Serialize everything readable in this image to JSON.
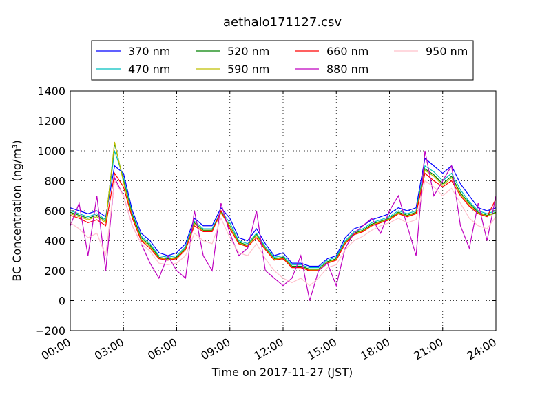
{
  "chart_data": {
    "type": "line",
    "title": "aethalo171127.csv",
    "xlabel": "Time on 2017-11-27 (JST)",
    "ylabel": "BC Concentration (ng/m³)",
    "x": [
      0,
      0.5,
      1,
      1.5,
      2,
      2.5,
      3,
      3.5,
      4,
      4.5,
      5,
      5.5,
      6,
      6.5,
      7,
      7.5,
      8,
      8.5,
      9,
      9.5,
      10,
      10.5,
      11,
      11.5,
      12,
      12.5,
      13,
      13.5,
      14,
      14.5,
      15,
      15.5,
      16,
      16.5,
      17,
      17.5,
      18,
      18.5,
      19,
      19.5,
      20,
      20.5,
      21,
      21.5,
      22,
      22.5,
      23,
      23.5,
      24
    ],
    "xlim": [
      0,
      24
    ],
    "xticks": [
      {
        "value": 0,
        "label": "00:00"
      },
      {
        "value": 3,
        "label": "03:00"
      },
      {
        "value": 6,
        "label": "06:00"
      },
      {
        "value": 9,
        "label": "09:00"
      },
      {
        "value": 12,
        "label": "12:00"
      },
      {
        "value": 15,
        "label": "15:00"
      },
      {
        "value": 18,
        "label": "18:00"
      },
      {
        "value": 21,
        "label": "21:00"
      },
      {
        "value": 24,
        "label": "24:00"
      }
    ],
    "ylim": [
      -200,
      1400
    ],
    "yticks": [
      {
        "value": -200,
        "label": "−200"
      },
      0,
      200,
      400,
      600,
      800,
      1000,
      1200,
      1400
    ],
    "grid": true,
    "series": [
      {
        "name": "370 nm",
        "color": "#0000ff",
        "values": [
          620,
          600,
          580,
          600,
          560,
          900,
          850,
          600,
          450,
          400,
          320,
          300,
          320,
          380,
          550,
          500,
          500,
          620,
          550,
          420,
          400,
          480,
          380,
          300,
          320,
          250,
          250,
          230,
          230,
          280,
          300,
          420,
          480,
          500,
          540,
          560,
          580,
          620,
          600,
          620,
          950,
          900,
          850,
          900,
          780,
          700,
          620,
          600,
          620
        ]
      },
      {
        "name": "470 nm",
        "color": "#00bfbf",
        "values": [
          600,
          580,
          560,
          580,
          540,
          1000,
          820,
          580,
          430,
          380,
          300,
          290,
          300,
          360,
          530,
          480,
          480,
          600,
          520,
          400,
          380,
          450,
          360,
          290,
          300,
          240,
          240,
          220,
          220,
          270,
          290,
          400,
          460,
          480,
          520,
          540,
          560,
          600,
          580,
          600,
          900,
          860,
          800,
          850,
          740,
          660,
          600,
          580,
          600
        ]
      },
      {
        "name": "520 nm",
        "color": "#008000",
        "values": [
          590,
          570,
          550,
          570,
          530,
          1050,
          800,
          570,
          420,
          370,
          290,
          280,
          290,
          350,
          520,
          470,
          470,
          590,
          500,
          390,
          370,
          440,
          350,
          280,
          290,
          230,
          230,
          210,
          210,
          260,
          280,
          390,
          450,
          470,
          510,
          530,
          550,
          590,
          570,
          590,
          880,
          840,
          780,
          830,
          720,
          650,
          590,
          570,
          590
        ]
      },
      {
        "name": "590 nm",
        "color": "#bfbf00",
        "values": [
          580,
          560,
          540,
          560,
          520,
          1060,
          790,
          560,
          410,
          360,
          285,
          275,
          285,
          345,
          515,
          465,
          465,
          585,
          495,
          385,
          365,
          435,
          345,
          275,
          285,
          225,
          225,
          205,
          205,
          255,
          275,
          385,
          445,
          465,
          505,
          525,
          545,
          585,
          565,
          585,
          870,
          830,
          770,
          820,
          710,
          640,
          585,
          565,
          585
        ]
      },
      {
        "name": "660 nm",
        "color": "#ff0000",
        "values": [
          570,
          550,
          520,
          540,
          500,
          850,
          760,
          550,
          400,
          350,
          280,
          270,
          280,
          340,
          500,
          460,
          460,
          600,
          480,
          380,
          360,
          420,
          340,
          270,
          280,
          220,
          220,
          200,
          200,
          250,
          270,
          380,
          440,
          460,
          500,
          520,
          540,
          580,
          560,
          580,
          850,
          800,
          760,
          800,
          700,
          630,
          580,
          560,
          680
        ]
      },
      {
        "name": "880 nm",
        "color": "#bf00bf",
        "values": [
          500,
          650,
          300,
          700,
          200,
          820,
          700,
          500,
          380,
          250,
          150,
          300,
          200,
          150,
          600,
          300,
          200,
          650,
          450,
          300,
          350,
          600,
          200,
          150,
          100,
          150,
          300,
          0,
          200,
          250,
          100,
          350,
          450,
          500,
          550,
          450,
          600,
          700,
          500,
          300,
          1000,
          700,
          800,
          900,
          500,
          350,
          650,
          400,
          700
        ]
      },
      {
        "name": "950 nm",
        "color": "#ffc0cb",
        "values": [
          520,
          480,
          420,
          450,
          300,
          800,
          700,
          500,
          380,
          330,
          250,
          240,
          250,
          300,
          450,
          400,
          380,
          550,
          420,
          320,
          300,
          380,
          280,
          200,
          150,
          120,
          150,
          100,
          150,
          220,
          240,
          340,
          400,
          430,
          470,
          500,
          520,
          550,
          520,
          540,
          800,
          760,
          700,
          750,
          650,
          550,
          500,
          480,
          560
        ]
      }
    ]
  }
}
